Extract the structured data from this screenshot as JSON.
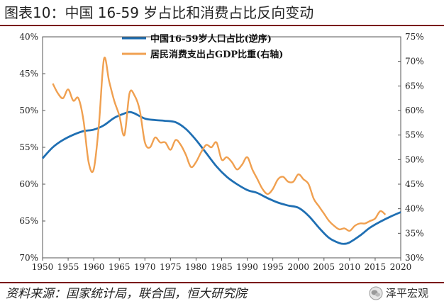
{
  "title": "图表10：中国 16-59 岁占比和消费占比反向变动",
  "source": "资料来源：国家统计局，联合国，恒大研究院",
  "watermark": {
    "icon": "wechat-icon",
    "text": "泽平宏观"
  },
  "colors": {
    "blue": "#1f6fb3",
    "orange": "#f0a050",
    "rule": "#7a0e17"
  },
  "chart_data": {
    "type": "line",
    "x_range": [
      1950,
      2020
    ],
    "x_ticks": [
      "1950",
      "1955",
      "1960",
      "1965",
      "1970",
      "1975",
      "1980",
      "1985",
      "1990",
      "1995",
      "2000",
      "2005",
      "2010",
      "2015",
      "2020"
    ],
    "left_axis": {
      "min": 40,
      "max": 70,
      "inverted": true,
      "ticks": [
        "40%",
        "45%",
        "50%",
        "55%",
        "60%",
        "65%",
        "70%"
      ]
    },
    "right_axis": {
      "min": 30,
      "max": 75,
      "ticks": [
        "30%",
        "35%",
        "40%",
        "45%",
        "50%",
        "55%",
        "60%",
        "65%",
        "70%",
        "75%"
      ]
    },
    "series": [
      {
        "name": "中国16-59岁人口占比(逆序)",
        "axis": "left",
        "color": "#1f6fb3",
        "x": [
          1950,
          1952,
          1954,
          1956,
          1958,
          1960,
          1962,
          1964,
          1966,
          1967,
          1968,
          1970,
          1972,
          1974,
          1976,
          1978,
          1980,
          1982,
          1984,
          1986,
          1988,
          1990,
          1991,
          1992,
          1994,
          1996,
          1998,
          2000,
          2002,
          2004,
          2006,
          2008,
          2009,
          2010,
          2012,
          2014,
          2016,
          2018,
          2020
        ],
        "values": [
          56.5,
          55.0,
          54.0,
          53.3,
          52.8,
          52.6,
          52.0,
          51.0,
          50.4,
          50.2,
          50.4,
          51.1,
          51.3,
          51.4,
          51.6,
          52.5,
          54.0,
          55.8,
          57.6,
          59.0,
          60.0,
          60.8,
          61.0,
          61.2,
          61.9,
          62.5,
          62.9,
          63.2,
          64.3,
          65.9,
          67.3,
          68.0,
          68.1,
          67.9,
          67.0,
          65.9,
          65.1,
          64.4,
          63.8
        ]
      },
      {
        "name": "居民消费支出占GDP比重(右轴)",
        "axis": "right",
        "color": "#f0a050",
        "x": [
          1952,
          1953,
          1954,
          1955,
          1956,
          1957,
          1958,
          1959,
          1960,
          1961,
          1962,
          1963,
          1964,
          1965,
          1966,
          1967,
          1968,
          1969,
          1970,
          1971,
          1972,
          1973,
          1974,
          1975,
          1976,
          1977,
          1978,
          1979,
          1980,
          1981,
          1982,
          1983,
          1984,
          1985,
          1986,
          1987,
          1988,
          1989,
          1990,
          1991,
          1992,
          1993,
          1994,
          1995,
          1996,
          1997,
          1998,
          1999,
          2000,
          2001,
          2002,
          2003,
          2004,
          2005,
          2006,
          2007,
          2008,
          2009,
          2010,
          2011,
          2012,
          2013,
          2014,
          2015,
          2016,
          2017
        ],
        "values": [
          65.5,
          63.5,
          62.5,
          64.3,
          62.0,
          62.5,
          58.0,
          49.5,
          48.0,
          57.0,
          70.5,
          66.0,
          62.0,
          59.0,
          55.0,
          63.5,
          63.0,
          60.0,
          53.5,
          52.5,
          54.5,
          53.5,
          53.5,
          52.0,
          54.0,
          53.0,
          51.0,
          48.5,
          49.5,
          51.5,
          53.0,
          52.5,
          53.5,
          50.0,
          50.5,
          49.5,
          48.0,
          49.0,
          50.5,
          48.0,
          46.0,
          44.0,
          43.0,
          44.0,
          46.0,
          46.5,
          45.5,
          45.5,
          47.0,
          46.0,
          45.0,
          42.0,
          40.5,
          39.0,
          37.5,
          36.5,
          35.8,
          36.0,
          35.5,
          36.5,
          37.0,
          37.0,
          37.5,
          38.0,
          39.5,
          38.8
        ]
      }
    ],
    "grid": false,
    "legend": "top-center"
  }
}
